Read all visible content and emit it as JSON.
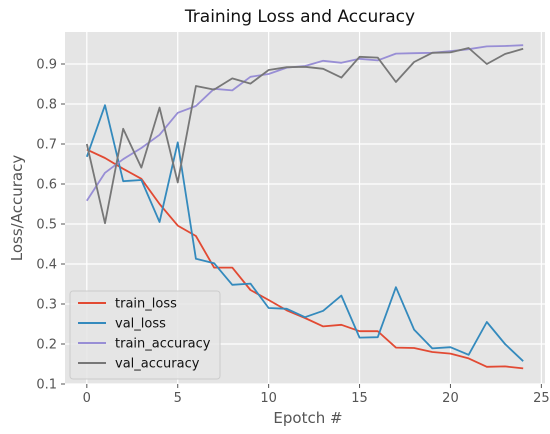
{
  "chart_data": {
    "type": "line",
    "title": "Training Loss and Accuracy",
    "xlabel": "Epotch #",
    "ylabel": "Loss/Accuracy",
    "xlim": [
      -1.2,
      25.2
    ],
    "ylim": [
      0.1,
      0.98
    ],
    "xticks": [
      0,
      5,
      10,
      15,
      20,
      25
    ],
    "yticks": [
      0.1,
      0.2,
      0.3,
      0.4,
      0.5,
      0.6,
      0.7,
      0.8,
      0.9
    ],
    "grid": true,
    "style": "ggplot",
    "legend_position": "lower-left",
    "x": [
      0,
      1,
      2,
      3,
      4,
      5,
      6,
      7,
      8,
      9,
      10,
      11,
      12,
      13,
      14,
      15,
      16,
      17,
      18,
      19,
      20,
      21,
      22,
      23,
      24
    ],
    "series": [
      {
        "name": "train_loss",
        "color": "#E24A33",
        "values": [
          0.686,
          0.665,
          0.638,
          0.613,
          0.55,
          0.496,
          0.47,
          0.391,
          0.391,
          0.335,
          0.31,
          0.284,
          0.265,
          0.244,
          0.248,
          0.232,
          0.232,
          0.191,
          0.19,
          0.18,
          0.176,
          0.164,
          0.143,
          0.144,
          0.139
        ]
      },
      {
        "name": "val_loss",
        "color": "#348ABD",
        "values": [
          0.668,
          0.797,
          0.607,
          0.61,
          0.505,
          0.704,
          0.413,
          0.402,
          0.348,
          0.351,
          0.29,
          0.288,
          0.267,
          0.283,
          0.321,
          0.216,
          0.217,
          0.342,
          0.236,
          0.189,
          0.192,
          0.173,
          0.255,
          0.2,
          0.157
        ]
      },
      {
        "name": "train_accuracy",
        "color": "#988ED5",
        "values": [
          0.558,
          0.628,
          0.662,
          0.69,
          0.723,
          0.778,
          0.795,
          0.838,
          0.834,
          0.868,
          0.875,
          0.891,
          0.895,
          0.908,
          0.903,
          0.913,
          0.909,
          0.926,
          0.927,
          0.928,
          0.932,
          0.937,
          0.944,
          0.945,
          0.947
        ]
      },
      {
        "name": "val_accuracy",
        "color": "#777777",
        "values": [
          0.7,
          0.502,
          0.738,
          0.641,
          0.791,
          0.604,
          0.845,
          0.836,
          0.864,
          0.851,
          0.885,
          0.892,
          0.893,
          0.888,
          0.866,
          0.918,
          0.916,
          0.855,
          0.905,
          0.928,
          0.929,
          0.94,
          0.9,
          0.925,
          0.938
        ]
      }
    ]
  }
}
